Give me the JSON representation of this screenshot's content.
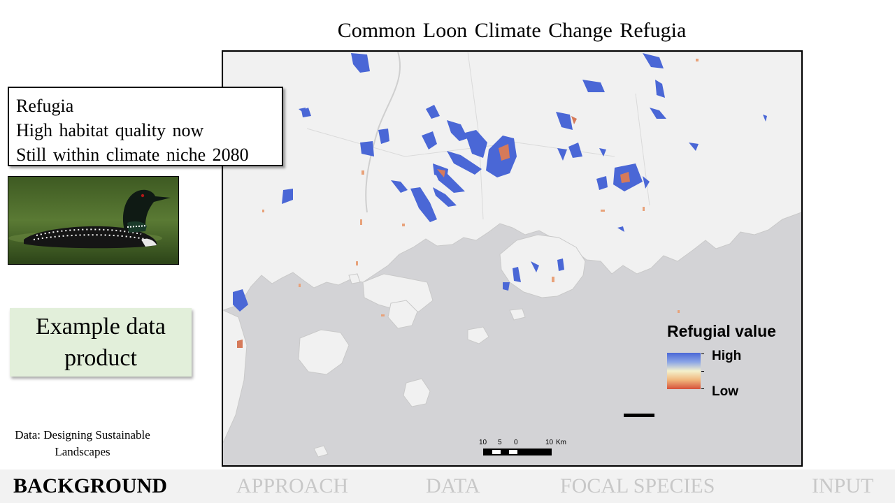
{
  "title": "Common Loon Climate Change Refugia",
  "callout": {
    "lines": [
      "Refugia",
      "High habitat quality now",
      "Still within climate niche 2080"
    ]
  },
  "example_label": "Example data product",
  "credit": "Data: Designing Sustainable Landscapes",
  "legend": {
    "title": "Refugial value",
    "high": "High",
    "low": "Low",
    "colors": {
      "high": "#4a67d6",
      "mid": "#f4f1cc",
      "low": "#d6503a"
    }
  },
  "scalebar": {
    "labels": [
      "10",
      "5",
      "0",
      "10"
    ],
    "unit": "Km"
  },
  "nav": {
    "tabs": [
      {
        "label": "BACKGROUND",
        "active": true
      },
      {
        "label": "APPROACH",
        "active": false
      },
      {
        "label": "DATA",
        "active": false
      },
      {
        "label": "FOCAL SPECIES",
        "active": false
      },
      {
        "label": "INPUT",
        "active": false
      }
    ]
  },
  "colors": {
    "land": "#f1f1f1",
    "water": "#d3d3d6",
    "example_bg": "#e2efda",
    "nav_bg": "#f2f2f2",
    "nav_inactive": "#c8c8c8"
  }
}
